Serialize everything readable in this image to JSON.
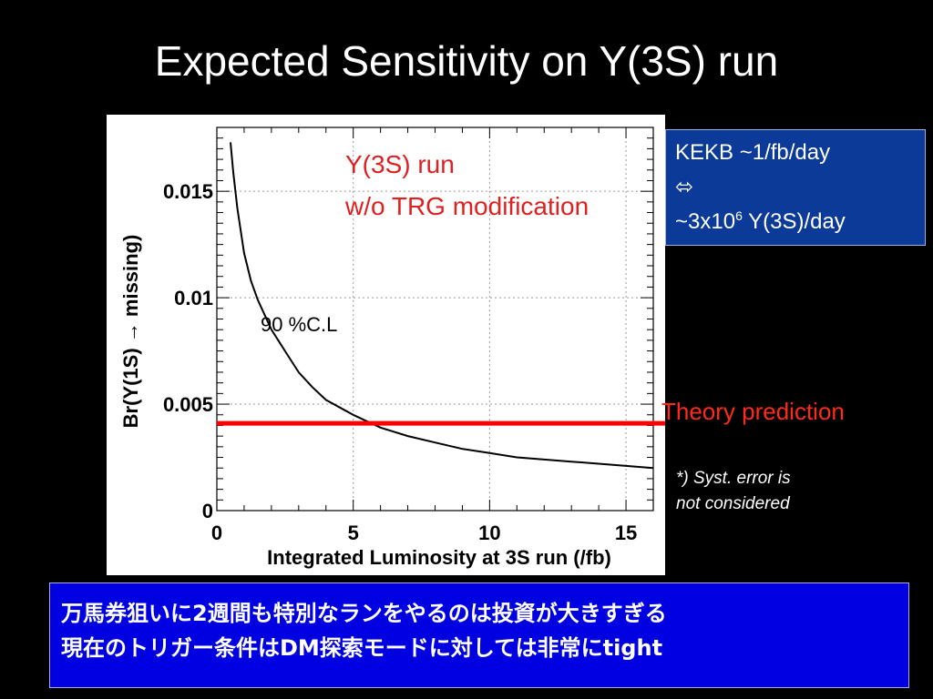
{
  "slide": {
    "title": "Expected Sensitivity on Y(3S) run"
  },
  "chart_data": {
    "type": "line",
    "xlabel": "Integrated Luminosity at 3S run (/fb)",
    "ylabel": "Br(Υ(1S) → missing)",
    "xlim": [
      0,
      16
    ],
    "ylim": [
      0,
      0.018
    ],
    "x_ticks": [
      0,
      5,
      10,
      15
    ],
    "x_tick_labels": [
      "0",
      "5",
      "10",
      "15"
    ],
    "y_ticks": [
      0,
      0.005,
      0.01,
      0.015
    ],
    "y_tick_labels": [
      "0",
      "0.005",
      "0.01",
      "0.015"
    ],
    "grid": true,
    "series": [
      {
        "name": "90 %C.L",
        "color": "#000000",
        "x": [
          0.5,
          0.6,
          0.75,
          1.0,
          1.25,
          1.5,
          2.0,
          2.5,
          3.0,
          3.5,
          4.0,
          5.0,
          6.0,
          7.0,
          8.0,
          9.0,
          10.0,
          11.0,
          12.0,
          13.0,
          14.0,
          15.0,
          16.0
        ],
        "y": [
          0.0173,
          0.0159,
          0.0142,
          0.0121,
          0.0108,
          0.0099,
          0.0085,
          0.0075,
          0.0065,
          0.0058,
          0.0052,
          0.0045,
          0.0039,
          0.0035,
          0.0032,
          0.0029,
          0.0027,
          0.0025,
          0.0024,
          0.0023,
          0.0022,
          0.0021,
          0.002
        ]
      }
    ],
    "reference_line": {
      "label": "Theory prediction",
      "y": 0.0041,
      "color": "#ff0000"
    },
    "annotations": {
      "plot_title_line1": "Y(3S) run",
      "plot_title_line2": "w/o TRG modification",
      "curve_label": "90 %C.L"
    }
  },
  "info_box": {
    "line1": "KEKB ~1/fb/day",
    "line2": "⬄",
    "line3_prefix": "~3x10",
    "line3_sup": "6",
    "line3_suffix": " Y(3S)/day"
  },
  "notes": {
    "syst_line1": "*) Syst. error is",
    "syst_line2": "not considered"
  },
  "bottom_box": {
    "line1": "万馬券狙いに2週間も特別なランをやるのは投資が大きすぎる",
    "line2": "現在のトリガー条件はDM探索モードに対しては非常にtight"
  }
}
